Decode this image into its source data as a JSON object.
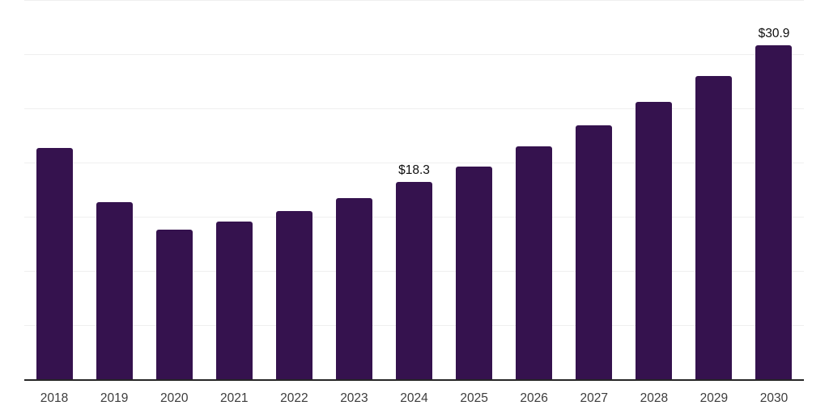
{
  "chart_data": {
    "type": "bar",
    "title": "",
    "xlabel": "",
    "ylabel": "",
    "categories": [
      "2018",
      "2019",
      "2020",
      "2021",
      "2022",
      "2023",
      "2024",
      "2025",
      "2026",
      "2027",
      "2028",
      "2029",
      "2030"
    ],
    "values": [
      21.4,
      16.4,
      13.9,
      14.6,
      15.6,
      16.8,
      18.3,
      19.7,
      21.6,
      23.5,
      25.7,
      28.1,
      30.9
    ],
    "data_labels": [
      {
        "category": "2024",
        "text": "$18.3"
      },
      {
        "category": "2030",
        "text": "$30.9"
      }
    ],
    "ylim": [
      0,
      35
    ],
    "grid_step": 5,
    "grid": true,
    "legend_position": "none",
    "colors": {
      "bar": "#35124E",
      "gridline": "#efefef",
      "axis": "#262626",
      "tick_label": "#3c3c3c",
      "data_label": "#0e0e0e"
    }
  }
}
